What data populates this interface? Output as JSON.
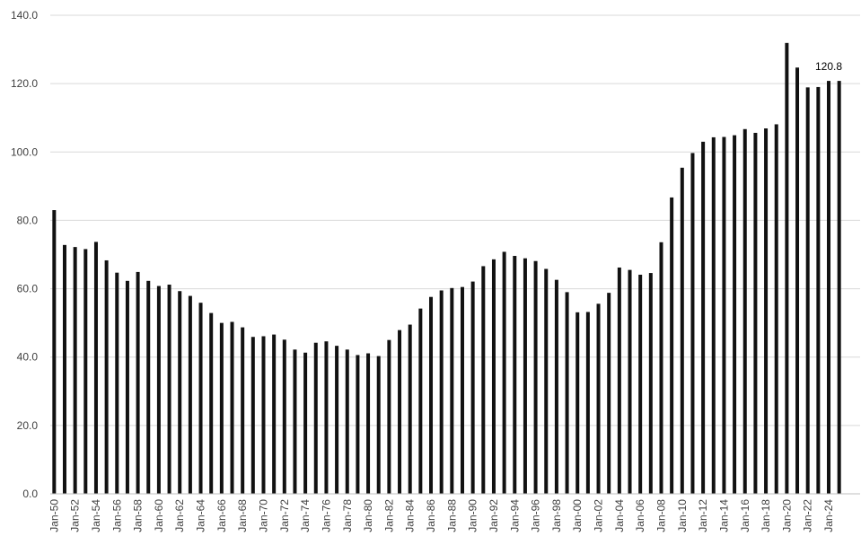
{
  "chart_data": {
    "type": "bar",
    "categories": [
      "Jan-50",
      "Jan-51",
      "Jan-52",
      "Jan-53",
      "Jan-54",
      "Jan-55",
      "Jan-56",
      "Jan-57",
      "Jan-58",
      "Jan-59",
      "Jan-60",
      "Jan-61",
      "Jan-62",
      "Jan-63",
      "Jan-64",
      "Jan-65",
      "Jan-66",
      "Jan-67",
      "Jan-68",
      "Jan-69",
      "Jan-70",
      "Jan-71",
      "Jan-72",
      "Jan-73",
      "Jan-74",
      "Jan-75",
      "Jan-76",
      "Jan-77",
      "Jan-78",
      "Jan-79",
      "Jan-80",
      "Jan-81",
      "Jan-82",
      "Jan-83",
      "Jan-84",
      "Jan-85",
      "Jan-86",
      "Jan-87",
      "Jan-88",
      "Jan-89",
      "Jan-90",
      "Jan-91",
      "Jan-92",
      "Jan-93",
      "Jan-94",
      "Jan-95",
      "Jan-96",
      "Jan-97",
      "Jan-98",
      "Jan-99",
      "Jan-00",
      "Jan-01",
      "Jan-02",
      "Jan-03",
      "Jan-04",
      "Jan-05",
      "Jan-06",
      "Jan-07",
      "Jan-08",
      "Jan-09",
      "Jan-10",
      "Jan-11",
      "Jan-12",
      "Jan-13",
      "Jan-14",
      "Jan-15",
      "Jan-16",
      "Jan-17",
      "Jan-18",
      "Jan-19",
      "Jan-20",
      "Jan-21",
      "Jan-22",
      "Jan-23",
      "Jan-24",
      "Jan-25"
    ],
    "x_tick_labels": [
      "Jan-50",
      "Jan-52",
      "Jan-54",
      "Jan-56",
      "Jan-58",
      "Jan-60",
      "Jan-62",
      "Jan-64",
      "Jan-66",
      "Jan-68",
      "Jan-70",
      "Jan-72",
      "Jan-74",
      "Jan-76",
      "Jan-78",
      "Jan-80",
      "Jan-82",
      "Jan-84",
      "Jan-86",
      "Jan-88",
      "Jan-90",
      "Jan-92",
      "Jan-94",
      "Jan-96",
      "Jan-98",
      "Jan-00",
      "Jan-02",
      "Jan-04",
      "Jan-06",
      "Jan-08",
      "Jan-10",
      "Jan-12",
      "Jan-14",
      "Jan-16",
      "Jan-18",
      "Jan-20",
      "Jan-22",
      "Jan-24"
    ],
    "values": [
      83.0,
      72.8,
      72.2,
      71.6,
      73.7,
      68.3,
      64.7,
      62.3,
      64.9,
      62.3,
      60.8,
      61.2,
      59.3,
      57.9,
      55.9,
      52.9,
      50.0,
      50.3,
      48.7,
      45.9,
      46.1,
      46.6,
      45.1,
      42.2,
      41.3,
      44.2,
      44.6,
      43.3,
      42.2,
      40.6,
      41.1,
      40.3,
      45.0,
      47.9,
      49.5,
      54.2,
      57.6,
      59.5,
      60.2,
      60.5,
      62.1,
      66.6,
      68.6,
      70.8,
      69.6,
      68.9,
      68.1,
      65.8,
      62.6,
      59.0,
      53.1,
      53.2,
      55.6,
      58.8,
      66.2,
      65.5,
      64.1,
      64.6,
      73.6,
      86.7,
      95.4,
      99.7,
      103.0,
      104.3,
      104.4,
      104.9,
      106.7,
      105.6,
      106.9,
      108.1,
      131.9,
      124.7,
      118.9,
      119.0,
      120.8,
      120.8
    ],
    "y_ticks": [
      "0.0",
      "20.0",
      "40.0",
      "60.0",
      "80.0",
      "100.0",
      "120.0",
      "140.0"
    ],
    "ylim": [
      0,
      140
    ],
    "bar_color": "#111111",
    "data_labels": [
      {
        "category": "Jan-24",
        "text": "120.8"
      }
    ],
    "grid": true,
    "legend": "none",
    "title": "",
    "xlabel": "",
    "ylabel": ""
  }
}
